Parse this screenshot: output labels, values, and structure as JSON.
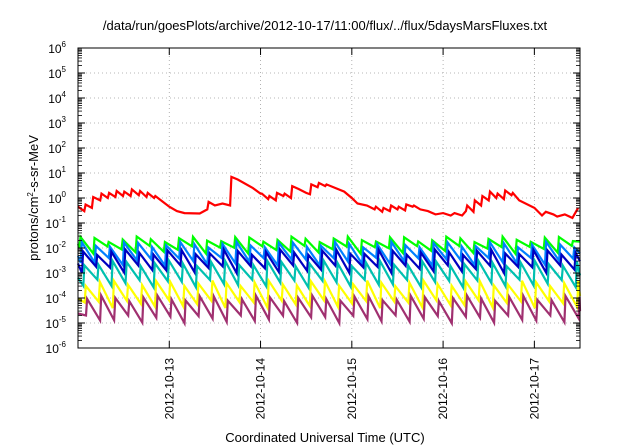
{
  "chart_data": {
    "type": "line",
    "title": "/data/run/goesPlots/archive/2012-10-17/11:00/flux/../flux/5daysMarsFluxes.txt",
    "xlabel": "Coordinated Universal Time (UTC)",
    "ylabel": "protons/cm²-s-sr-MeV",
    "ylabel_parts": {
      "pre": "protons/cm",
      "sup": "2",
      "post": "-s-sr-MeV"
    },
    "yscale": "log",
    "ylim": [
      1e-06,
      1000000
    ],
    "xlim": [
      "2012-10-12T00:00",
      "2012-10-17T12:00"
    ],
    "grid": true,
    "legend": "none",
    "yticks": [
      {
        "base": "10",
        "exp": "-6",
        "value": 1e-06
      },
      {
        "base": "10",
        "exp": "-5",
        "value": 1e-05
      },
      {
        "base": "10",
        "exp": "-4",
        "value": 0.0001
      },
      {
        "base": "10",
        "exp": "-3",
        "value": 0.001
      },
      {
        "base": "10",
        "exp": "-2",
        "value": 0.01
      },
      {
        "base": "10",
        "exp": "-1",
        "value": 0.1
      },
      {
        "base": "10",
        "exp": "0",
        "value": 1
      },
      {
        "base": "10",
        "exp": "1",
        "value": 10
      },
      {
        "base": "10",
        "exp": "2",
        "value": 100
      },
      {
        "base": "10",
        "exp": "3",
        "value": 1000
      },
      {
        "base": "10",
        "exp": "4",
        "value": 10000
      },
      {
        "base": "10",
        "exp": "5",
        "value": 100000
      },
      {
        "base": "10",
        "exp": "6",
        "value": 1000000
      }
    ],
    "xticks": [
      {
        "label": "2012-10-13",
        "value": "2012-10-13T00:00"
      },
      {
        "label": "2012-10-14",
        "value": "2012-10-14T00:00"
      },
      {
        "label": "2012-10-15",
        "value": "2012-10-15T00:00"
      },
      {
        "label": "2012-10-16",
        "value": "2012-10-16T00:00"
      },
      {
        "label": "2012-10-17",
        "value": "2012-10-17T00:00"
      }
    ],
    "series": [
      {
        "color": "#ff0000",
        "points": [
          [
            "2012-10-12T00:00",
            0.45
          ],
          [
            "2012-10-12T01:40",
            0.3
          ],
          [
            "2012-10-12T02:00",
            0.55
          ],
          [
            "2012-10-12T03:40",
            0.4
          ],
          [
            "2012-10-12T04:00",
            1.1
          ],
          [
            "2012-10-12T05:50",
            0.8
          ],
          [
            "2012-10-12T06:10",
            1.5
          ],
          [
            "2012-10-12T07:50",
            1.0
          ],
          [
            "2012-10-12T08:10",
            1.6
          ],
          [
            "2012-10-12T09:50",
            1.1
          ],
          [
            "2012-10-12T10:10",
            1.9
          ],
          [
            "2012-10-12T11:50",
            1.2
          ],
          [
            "2012-10-12T12:10",
            1.8
          ],
          [
            "2012-10-12T13:50",
            1.2
          ],
          [
            "2012-10-12T14:10",
            2.2
          ],
          [
            "2012-10-12T16:00",
            1.3
          ],
          [
            "2012-10-12T16:20",
            1.9
          ],
          [
            "2012-10-12T18:00",
            1.1
          ],
          [
            "2012-10-12T18:20",
            1.6
          ],
          [
            "2012-10-12T20:00",
            1.0
          ],
          [
            "2012-10-12T20:20",
            1.2
          ],
          [
            "2012-10-13T00:00",
            0.45
          ],
          [
            "2012-10-13T02:00",
            0.3
          ],
          [
            "2012-10-13T04:00",
            0.25
          ],
          [
            "2012-10-13T08:00",
            0.24
          ],
          [
            "2012-10-13T10:00",
            0.35
          ],
          [
            "2012-10-13T10:20",
            0.7
          ],
          [
            "2012-10-13T12:00",
            0.5
          ],
          [
            "2012-10-13T14:00",
            0.6
          ],
          [
            "2012-10-13T16:00",
            0.5
          ],
          [
            "2012-10-13T16:20",
            7.0
          ],
          [
            "2012-10-13T18:00",
            5.5
          ],
          [
            "2012-10-13T22:00",
            2.5
          ],
          [
            "2012-10-14T00:00",
            1.5
          ],
          [
            "2012-10-14T00:20",
            1.5
          ],
          [
            "2012-10-14T02:00",
            0.9
          ],
          [
            "2012-10-14T02:20",
            1.2
          ],
          [
            "2012-10-14T04:00",
            0.8
          ],
          [
            "2012-10-14T04:20",
            1.6
          ],
          [
            "2012-10-14T06:00",
            1.2
          ],
          [
            "2012-10-14T06:20",
            1.5
          ],
          [
            "2012-10-14T08:00",
            1.0
          ],
          [
            "2012-10-14T08:20",
            3.0
          ],
          [
            "2012-10-14T10:00",
            2.3
          ],
          [
            "2012-10-14T12:00",
            1.6
          ],
          [
            "2012-10-14T13:00",
            1.4
          ],
          [
            "2012-10-14T13:20",
            3.5
          ],
          [
            "2012-10-14T15:00",
            2.7
          ],
          [
            "2012-10-14T15:20",
            4.0
          ],
          [
            "2012-10-14T17:00",
            3.0
          ],
          [
            "2012-10-14T17:20",
            3.5
          ],
          [
            "2012-10-14T22:00",
            1.8
          ],
          [
            "2012-10-15T00:00",
            1.0
          ],
          [
            "2012-10-15T01:30",
            0.6
          ],
          [
            "2012-10-15T04:00",
            0.5
          ],
          [
            "2012-10-15T06:00",
            0.35
          ],
          [
            "2012-10-15T06:20",
            0.45
          ],
          [
            "2012-10-15T08:00",
            0.28
          ],
          [
            "2012-10-15T08:20",
            0.4
          ],
          [
            "2012-10-15T10:00",
            0.3
          ],
          [
            "2012-10-15T10:20",
            0.5
          ],
          [
            "2012-10-15T12:00",
            0.35
          ],
          [
            "2012-10-15T12:20",
            0.45
          ],
          [
            "2012-10-15T14:00",
            0.32
          ],
          [
            "2012-10-15T14:20",
            0.55
          ],
          [
            "2012-10-15T16:00",
            0.45
          ],
          [
            "2012-10-15T16:20",
            0.5
          ],
          [
            "2012-10-15T18:00",
            0.35
          ],
          [
            "2012-10-15T20:00",
            0.3
          ],
          [
            "2012-10-15T22:00",
            0.22
          ],
          [
            "2012-10-16T00:00",
            0.25
          ],
          [
            "2012-10-16T02:00",
            0.2
          ],
          [
            "2012-10-16T03:00",
            0.25
          ],
          [
            "2012-10-16T05:00",
            0.2
          ],
          [
            "2012-10-16T06:00",
            0.3
          ],
          [
            "2012-10-16T06:20",
            0.5
          ],
          [
            "2012-10-16T08:00",
            0.28
          ],
          [
            "2012-10-16T08:20",
            0.8
          ],
          [
            "2012-10-16T10:00",
            0.5
          ],
          [
            "2012-10-16T10:20",
            1.2
          ],
          [
            "2012-10-16T12:00",
            0.8
          ],
          [
            "2012-10-16T12:20",
            1.8
          ],
          [
            "2012-10-16T14:00",
            1.0
          ],
          [
            "2012-10-16T14:20",
            1.5
          ],
          [
            "2012-10-16T16:00",
            0.9
          ],
          [
            "2012-10-16T16:20",
            2.0
          ],
          [
            "2012-10-16T18:00",
            1.3
          ],
          [
            "2012-10-16T18:20",
            1.6
          ],
          [
            "2012-10-16T20:00",
            0.8
          ],
          [
            "2012-10-17T00:00",
            0.4
          ],
          [
            "2012-10-17T02:00",
            0.2
          ],
          [
            "2012-10-17T03:00",
            0.28
          ],
          [
            "2012-10-17T05:00",
            0.22
          ],
          [
            "2012-10-17T06:00",
            0.18
          ],
          [
            "2012-10-17T08:00",
            0.22
          ],
          [
            "2012-10-17T10:00",
            0.16
          ],
          [
            "2012-10-17T11:30",
            0.4
          ]
        ]
      },
      {
        "color": "#00ff00",
        "sawtooth": {
          "high": 0.023,
          "low": 0.009
        }
      },
      {
        "color": "#0080ff",
        "sawtooth": {
          "high": 0.014,
          "low": 0.003
        }
      },
      {
        "color": "#0000c0",
        "sawtooth": {
          "high": 0.007,
          "low": 0.0015
        }
      },
      {
        "color": "#00c0b0",
        "sawtooth": {
          "high": 0.0025,
          "low": 0.0004
        }
      },
      {
        "color": "#ffff00",
        "sawtooth": {
          "high": 0.0004,
          "low": 6e-05
        }
      },
      {
        "color": "#a03070",
        "sawtooth": {
          "high": 0.0001,
          "low": 1.5e-05
        }
      }
    ]
  }
}
